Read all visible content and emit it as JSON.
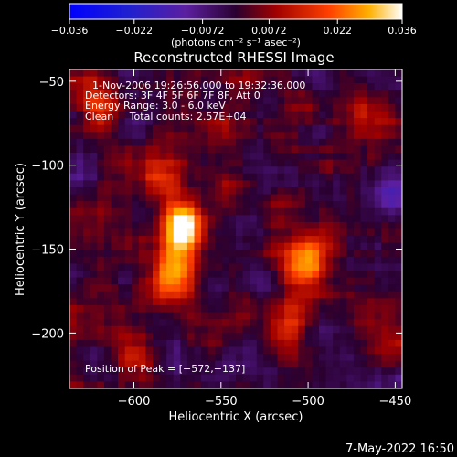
{
  "chart_data": {
    "type": "heatmap",
    "title": "Reconstructed RHESSI Image",
    "xlabel": "Heliocentric X (arcsec)",
    "ylabel": "Heliocentric Y (arcsec)",
    "xlim": [
      -637,
      -446
    ],
    "ylim": [
      -233,
      -43
    ],
    "x_ticks": [
      {
        "value": -600,
        "label": "−600"
      },
      {
        "value": -550,
        "label": "−550"
      },
      {
        "value": -500,
        "label": "−500"
      },
      {
        "value": -450,
        "label": "−450"
      }
    ],
    "y_ticks": [
      {
        "value": -50,
        "label": "−50"
      },
      {
        "value": -100,
        "label": "−100"
      },
      {
        "value": -150,
        "label": "−150"
      },
      {
        "value": -200,
        "label": "−200"
      }
    ],
    "colorbar": {
      "range": [
        -0.036,
        0.036
      ],
      "ticks": [
        {
          "value": -0.036,
          "label": "−0.036"
        },
        {
          "value": -0.022,
          "label": "−0.022"
        },
        {
          "value": -0.0072,
          "label": "−0.0072"
        },
        {
          "value": 0.0072,
          "label": "0.0072"
        },
        {
          "value": 0.022,
          "label": "0.022"
        },
        {
          "value": 0.036,
          "label": "0.036"
        }
      ],
      "units": "(photons cm⁻² s⁻¹ asec⁻²)"
    },
    "annotations": [
      "1-Nov-2006 19:26:56.000 to 19:32:36.000",
      "Detectors: 3F 4F 5F 6F 7F 8F, Att 0",
      "Energy Range: 3.0 - 6.0 keV",
      "Clean     Total counts: 2.57E+04"
    ],
    "peak_label": "Position of Peak = [−572,−137]",
    "sources": [
      {
        "x": -572,
        "y": -137,
        "peak": 0.036
      },
      {
        "x": -577,
        "y": -167,
        "peak": 0.03
      },
      {
        "x": -500,
        "y": -155,
        "peak": 0.03
      },
      {
        "x": -582,
        "y": -108,
        "peak": 0.018
      },
      {
        "x": -510,
        "y": -195,
        "peak": 0.014
      },
      {
        "x": -470,
        "y": -75,
        "peak": 0.015
      },
      {
        "x": -620,
        "y": -65,
        "peak": 0.014
      },
      {
        "x": -600,
        "y": -210,
        "peak": 0.013
      }
    ]
  },
  "footer": {
    "timestamp": "7-May-2022 16:50"
  }
}
